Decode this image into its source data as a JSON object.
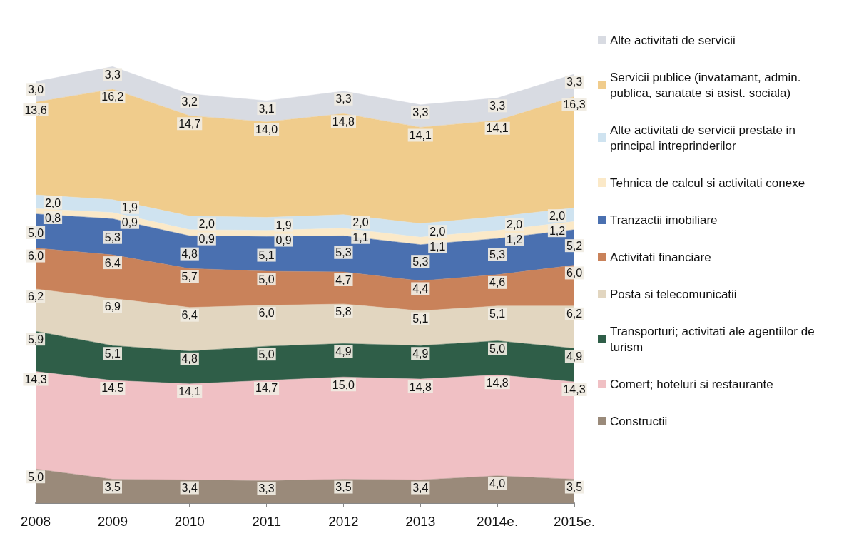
{
  "chart_data": {
    "type": "area",
    "stacked": true,
    "legend": "right",
    "tick_labels": "x",
    "marker": "none",
    "categories": [
      "2008",
      "2009",
      "2010",
      "2011",
      "2012",
      "2013",
      "2014e.",
      "2015e."
    ],
    "series": [
      {
        "name": "Constructii",
        "color": "#9a8a7a",
        "values": [
          5.0,
          3.5,
          3.4,
          3.3,
          3.5,
          3.4,
          4.0,
          3.5
        ],
        "value_labels": [
          "5,0",
          "3,5",
          "3,4",
          "3,3",
          "3,5",
          "3,4",
          "4,0",
          "3,5"
        ]
      },
      {
        "name": "Comert; hoteluri si restaurante",
        "color": "#f0c0c4",
        "values": [
          14.3,
          14.5,
          14.1,
          14.7,
          15.0,
          14.8,
          14.8,
          14.3
        ],
        "value_labels": [
          "14,3",
          "14,5",
          "14,1",
          "14,7",
          "15,0",
          "14,8",
          "14,8",
          "14,3"
        ]
      },
      {
        "name": "Transporturi; activitati ale agentiilor de turism",
        "color": "#2f5e48",
        "values": [
          5.9,
          5.1,
          4.8,
          5.0,
          4.9,
          4.9,
          5.0,
          4.9
        ],
        "value_labels": [
          "5,9",
          "5,1",
          "4,8",
          "5,0",
          "4,9",
          "4,9",
          "5,0",
          "4,9"
        ]
      },
      {
        "name": "Posta si telecomunicatii",
        "color": "#e2d6c0",
        "values": [
          6.2,
          6.9,
          6.4,
          6.0,
          5.8,
          5.1,
          5.1,
          6.2
        ],
        "value_labels": [
          "6,2",
          "6,9",
          "6,4",
          "6,0",
          "5,8",
          "5,1",
          "5,1",
          "6,2"
        ]
      },
      {
        "name": "Activitati financiare",
        "color": "#c9825a",
        "values": [
          6.0,
          6.4,
          5.7,
          5.0,
          4.7,
          4.4,
          4.6,
          6.0
        ],
        "value_labels": [
          "6,0",
          "6,4",
          "5,7",
          "5,0",
          "4,7",
          "4,4",
          "4,6",
          "6,0"
        ]
      },
      {
        "name": "Tranzactii imobiliare",
        "color": "#4a70b0",
        "values": [
          5.0,
          5.3,
          4.8,
          5.1,
          5.3,
          5.3,
          5.3,
          5.2
        ],
        "value_labels": [
          "5,0",
          "5,3",
          "4,8",
          "5,1",
          "5,3",
          "5,3",
          "5,3",
          "5,2"
        ]
      },
      {
        "name": "Tehnica de calcul si activitati conexe",
        "color": "#fbe9c8",
        "values": [
          0.8,
          0.9,
          0.9,
          0.9,
          1.1,
          1.1,
          1.2,
          1.2
        ],
        "value_labels": [
          "0,8",
          "0,9",
          "0,9",
          "0,9",
          "1,1",
          "1,1",
          "1,2",
          "1,2"
        ]
      },
      {
        "name": "Alte activitati de servicii prestate in principal intreprinderilor",
        "color": "#cfe3f0",
        "values": [
          2.0,
          1.9,
          2.0,
          1.9,
          2.0,
          2.0,
          2.0,
          2.0
        ],
        "value_labels": [
          "2,0",
          "1,9",
          "2,0",
          "1,9",
          "2,0",
          "2,0",
          "2,0",
          "2,0"
        ]
      },
      {
        "name": "Servicii publice (invatamant, admin. publica, sanatate si asist. sociala)",
        "color": "#f0cc8c",
        "values": [
          13.6,
          16.2,
          14.7,
          14.0,
          14.8,
          14.1,
          14.1,
          16.3
        ],
        "value_labels": [
          "13,6",
          "16,2",
          "14,7",
          "14,0",
          "14,8",
          "14,1",
          "14,1",
          "16,3"
        ]
      },
      {
        "name": "Alte activitati de servicii",
        "color": "#d8dbe2",
        "values": [
          3.0,
          3.3,
          3.2,
          3.1,
          3.3,
          3.3,
          3.3,
          3.3
        ],
        "value_labels": [
          "3,0",
          "3,3",
          "3,2",
          "3,1",
          "3,3",
          "3,3",
          "3,3",
          "3,3"
        ]
      }
    ]
  }
}
